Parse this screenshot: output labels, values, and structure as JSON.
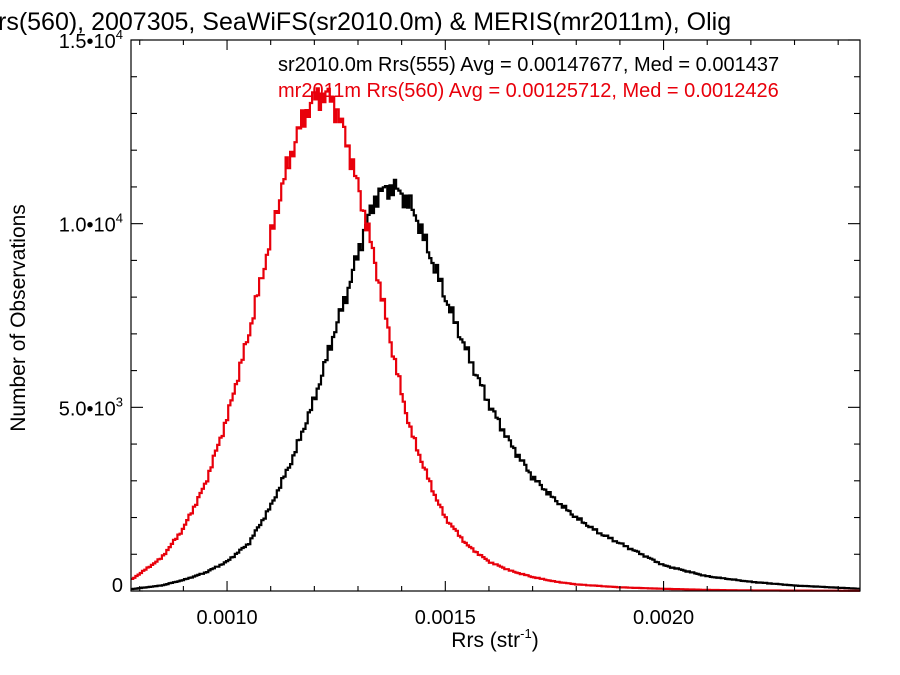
{
  "chart_data": {
    "type": "line",
    "style": "histogram-step",
    "title": "rs(560), 2007305, SeaWiFS(sr2010.0m) & MERIS(mr2011m), Olig",
    "xlabel": "Rrs (str",
    "xlabel_sup": "-1",
    "xlabel_close": ")",
    "ylabel": "Number of Observations",
    "xlim": [
      0.00078,
      0.00245
    ],
    "ylim": [
      0,
      15000
    ],
    "grid": false,
    "x_ticks": [
      {
        "value": 0.001,
        "label": "0.0010"
      },
      {
        "value": 0.0015,
        "label": "0.0015"
      },
      {
        "value": 0.002,
        "label": "0.0020"
      }
    ],
    "y_ticks": [
      {
        "value": 0,
        "base": "0",
        "exp": ""
      },
      {
        "value": 5000,
        "base": "5.0•10",
        "exp": "3"
      },
      {
        "value": 10000,
        "base": "1.0•10",
        "exp": "4"
      },
      {
        "value": 15000,
        "base": "1.5•10",
        "exp": "4"
      }
    ],
    "legend": [
      {
        "text": "sr2010.0m Rrs(555) Avg = 0.00147677, Med = 0.001437",
        "color": "#000000"
      },
      {
        "text": "mr2011m Rrs(560) Avg = 0.00125712, Med = 0.0012426",
        "color": "#e8000b"
      }
    ],
    "series": [
      {
        "color": "#000000",
        "x": [
          0.00078,
          0.00085,
          0.0009,
          0.00095,
          0.001,
          0.00105,
          0.0011,
          0.00115,
          0.0012,
          0.00125,
          0.00128,
          0.0013,
          0.00132,
          0.00134,
          0.00136,
          0.00138,
          0.0014,
          0.00142,
          0.00144,
          0.00146,
          0.00148,
          0.0015,
          0.00155,
          0.0016,
          0.00165,
          0.0017,
          0.00175,
          0.0018,
          0.00185,
          0.0019,
          0.00195,
          0.002,
          0.0021,
          0.0022,
          0.0023,
          0.00245
        ],
        "y": [
          50,
          150,
          300,
          500,
          800,
          1300,
          2300,
          3600,
          5200,
          7200,
          8300,
          9200,
          10000,
          10700,
          10900,
          11000,
          10800,
          10500,
          10000,
          9300,
          8700,
          8000,
          6500,
          5100,
          4000,
          3100,
          2500,
          2000,
          1600,
          1300,
          1000,
          700,
          400,
          250,
          150,
          60
        ]
      },
      {
        "color": "#e8000b",
        "x": [
          0.00078,
          0.00085,
          0.0009,
          0.00095,
          0.001,
          0.00105,
          0.0011,
          0.00113,
          0.00116,
          0.00118,
          0.0012,
          0.00122,
          0.00124,
          0.00126,
          0.00128,
          0.0013,
          0.00132,
          0.00134,
          0.00136,
          0.00138,
          0.0014,
          0.00142,
          0.00145,
          0.00148,
          0.0015,
          0.00155,
          0.0016,
          0.00165,
          0.0017,
          0.00175,
          0.0018,
          0.0019,
          0.002,
          0.0021,
          0.0022,
          0.00245
        ],
        "y": [
          300,
          900,
          1700,
          2900,
          4700,
          7000,
          9600,
          11200,
          12400,
          13000,
          13400,
          13500,
          13400,
          12800,
          12000,
          11000,
          10000,
          8900,
          7700,
          6500,
          5400,
          4400,
          3400,
          2500,
          2000,
          1250,
          800,
          550,
          380,
          260,
          180,
          100,
          60,
          30,
          15,
          5
        ]
      }
    ]
  }
}
